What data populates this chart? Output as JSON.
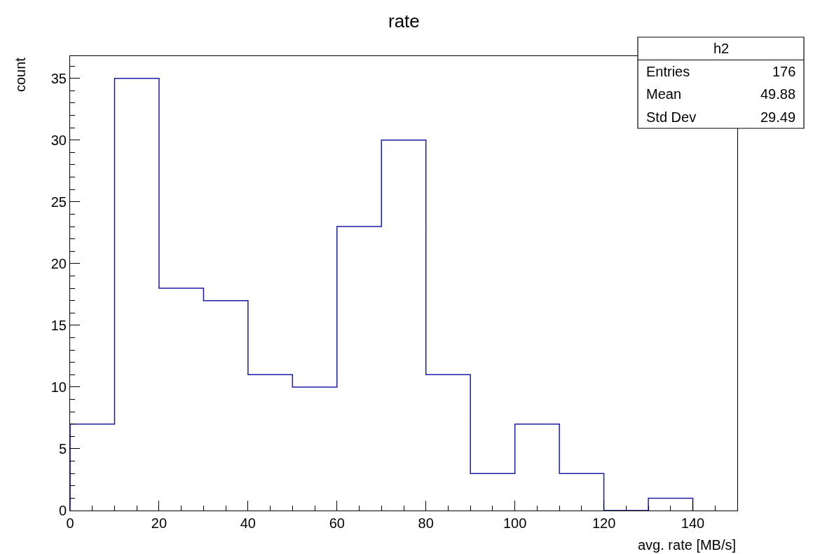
{
  "chart_data": {
    "type": "histogram",
    "title": "rate",
    "xlabel": "avg. rate [MB/s]",
    "ylabel": "count",
    "bins": [
      0,
      10,
      20,
      30,
      40,
      50,
      60,
      70,
      80,
      90,
      100,
      110,
      120,
      130,
      140
    ],
    "values": [
      7,
      35,
      18,
      17,
      11,
      10,
      23,
      30,
      11,
      3,
      7,
      3,
      0,
      1
    ],
    "color": "#1c1ca8",
    "xlim": [
      0,
      150
    ],
    "ylim": [
      0,
      36.8
    ],
    "xticks": [
      0,
      20,
      40,
      60,
      80,
      100,
      120,
      140
    ],
    "yticks": [
      0,
      5,
      10,
      15,
      20,
      25,
      30,
      35
    ],
    "annotations": [
      "h2",
      "Entries",
      "176",
      "Mean",
      "49.88",
      "Std Dev",
      "29.49"
    ]
  }
}
